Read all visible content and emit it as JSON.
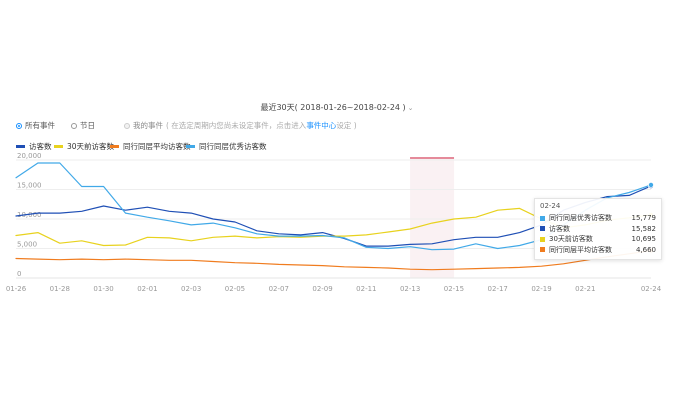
{
  "date_range": {
    "label": "最近30天",
    "range": "( 2018-01-26~2018-02-24 )"
  },
  "event_filter": {
    "options": [
      {
        "label": "所有事件",
        "state": "selected"
      },
      {
        "label": "节日",
        "state": "unselected"
      },
      {
        "label": "我的事件",
        "state": "disabled"
      }
    ],
    "hint": "( 在选定周期内您尚未设定事件，点击进入",
    "hint_link": "事件中心",
    "hint_tail": "设定 )"
  },
  "colors": {
    "visitors": "#1f4fb5",
    "visitors_30d_ago": "#e8d21e",
    "peer_average": "#f07c1f",
    "peer_excellent": "#41a9e8",
    "highlight_band": "#f4dfe4",
    "highlight_top": "#e58a9a",
    "axis_text": "#999999",
    "grid": "#eeeeee"
  },
  "tooltip": {
    "date": "02-24",
    "rows": [
      {
        "name": "同行同层优秀访客数",
        "value": "15,779",
        "color": "#41a9e8"
      },
      {
        "name": "访客数",
        "value": "15,582",
        "color": "#1f4fb5"
      },
      {
        "name": "30天前访客数",
        "value": "10,695",
        "color": "#e8d21e"
      },
      {
        "name": "同行同层平均访客数",
        "value": "4,660",
        "color": "#f07c1f"
      }
    ]
  },
  "chart_data": {
    "type": "line",
    "title": "",
    "xlabel": "",
    "ylabel": "",
    "ylim": [
      0,
      20000
    ],
    "yticks": [
      "0",
      "5,000",
      "10,000",
      "15,000",
      "20,000"
    ],
    "ytick_values": [
      0,
      5000,
      10000,
      15000,
      20000
    ],
    "xtick_labels": [
      "01-26",
      "01-28",
      "01-30",
      "02-01",
      "02-03",
      "02-05",
      "02-07",
      "02-09",
      "02-11",
      "02-13",
      "02-15",
      "02-17",
      "02-19",
      "02-21",
      "02-24"
    ],
    "x": [
      "01-26",
      "01-27",
      "01-28",
      "01-29",
      "01-30",
      "01-31",
      "02-01",
      "02-02",
      "02-03",
      "02-04",
      "02-05",
      "02-06",
      "02-07",
      "02-08",
      "02-09",
      "02-10",
      "02-11",
      "02-12",
      "02-13",
      "02-14",
      "02-15",
      "02-16",
      "02-17",
      "02-18",
      "02-19",
      "02-20",
      "02-21",
      "02-22",
      "02-23",
      "02-24"
    ],
    "highlight_date": "02-14",
    "legend_position": "top-left",
    "grid": true,
    "series": [
      {
        "name": "访客数",
        "key": "visitors",
        "values": [
          10500,
          11000,
          11000,
          11300,
          12200,
          11500,
          12000,
          11300,
          11000,
          10000,
          9500,
          8000,
          7500,
          7300,
          7700,
          6700,
          5400,
          5400,
          5700,
          5800,
          6500,
          6900,
          6900,
          7700,
          9000,
          11500,
          12800,
          13800,
          14000,
          15582
        ]
      },
      {
        "name": "30天前访客数",
        "key": "visitors_30d_ago",
        "values": [
          7200,
          7700,
          5900,
          6300,
          5500,
          5600,
          6900,
          6800,
          6300,
          6900,
          7100,
          6800,
          7000,
          6900,
          7100,
          7100,
          7300,
          7800,
          8300,
          9300,
          10000,
          10300,
          11500,
          11800,
          10000,
          8500,
          9000,
          9800,
          10200,
          10695
        ]
      },
      {
        "name": "同行同层平均访客数",
        "key": "peer_average",
        "values": [
          3300,
          3200,
          3100,
          3200,
          3100,
          3200,
          3100,
          3000,
          3000,
          2800,
          2600,
          2500,
          2300,
          2200,
          2100,
          1900,
          1800,
          1700,
          1500,
          1400,
          1500,
          1600,
          1700,
          1800,
          2000,
          2400,
          3000,
          3600,
          4100,
          4660
        ]
      },
      {
        "name": "同行同层优秀访客数",
        "key": "peer_excellent",
        "values": [
          17000,
          19500,
          19500,
          15500,
          15500,
          11000,
          10300,
          9700,
          9000,
          9300,
          8500,
          7500,
          7100,
          7100,
          7200,
          6800,
          5200,
          5000,
          5300,
          4800,
          4900,
          5800,
          5000,
          5500,
          6500,
          9000,
          11500,
          13600,
          14500,
          15779
        ]
      }
    ]
  }
}
